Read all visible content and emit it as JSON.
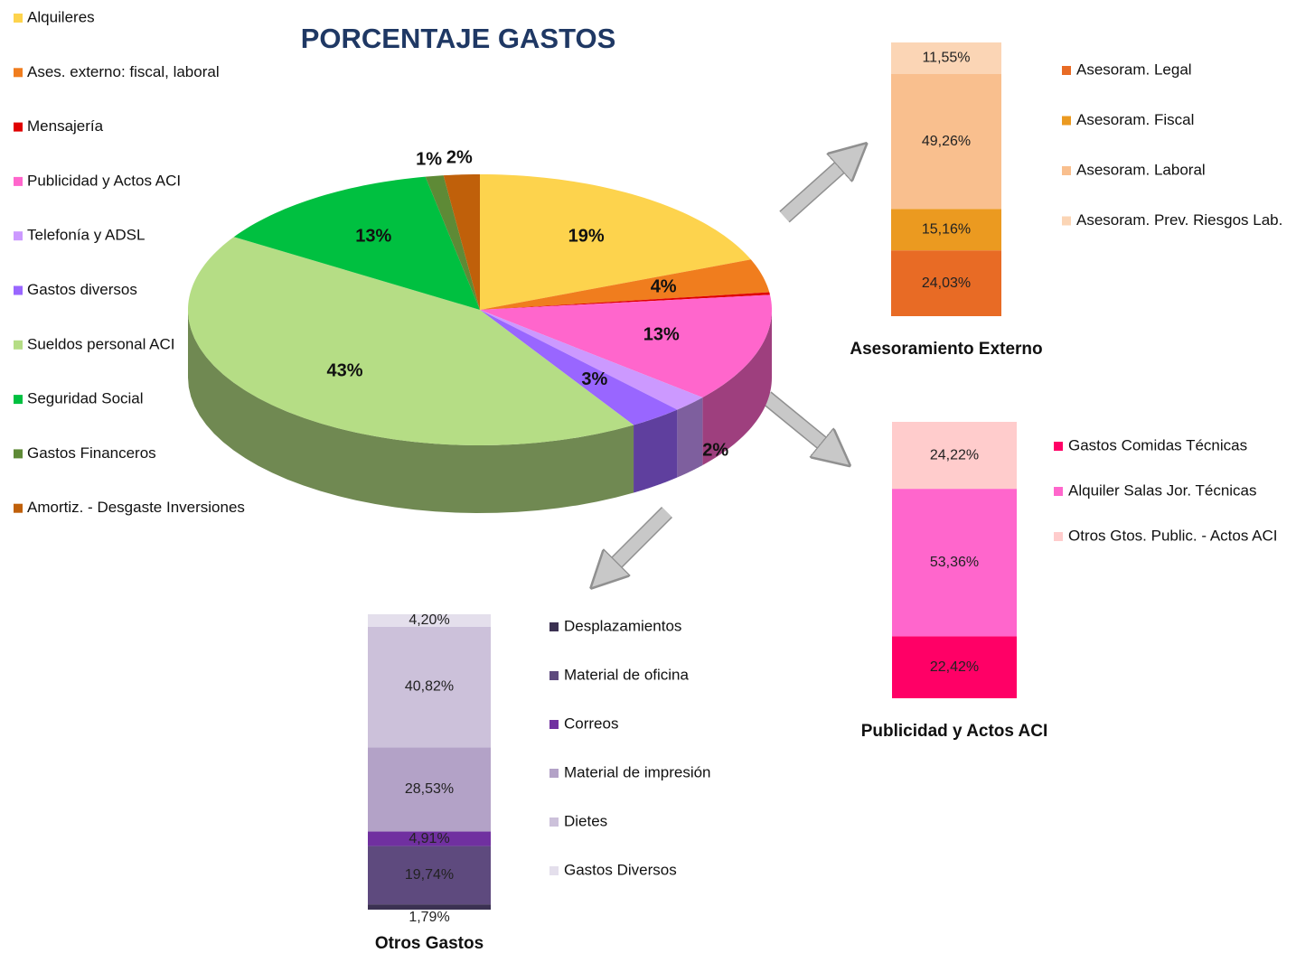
{
  "chart_data": [
    {
      "type": "pie",
      "title": "PORCENTAJE GASTOS",
      "categories": [
        "Alquileres",
        "Ases. externo: fiscal, laboral",
        "Mensajería",
        "Publicidad y Actos ACI",
        "Telefonía y ADSL",
        "Gastos diversos",
        "Sueldos personal ACI",
        "Seguridad Social",
        "Gastos Financeros",
        "Amortiz. - Desgaste  Inversiones"
      ],
      "values": [
        19,
        4,
        0.3,
        13,
        2,
        3,
        43,
        13,
        1,
        2
      ],
      "value_labels": [
        "19%",
        "4%",
        null,
        "13%",
        "2%",
        "3%",
        "43%",
        "13%",
        "1%",
        "2%"
      ],
      "colors": [
        "#fdd34d",
        "#f07d1e",
        "#e00000",
        "#ff66cc",
        "#cc99ff",
        "#9966ff",
        "#b5dd85",
        "#00c040",
        "#5e8a36",
        "#c0600a"
      ],
      "legend": "left"
    },
    {
      "type": "stacked_bar",
      "title": "Asesoramiento Externo",
      "ylim": [
        0,
        100
      ],
      "series": [
        {
          "name": "Asesoram. Legal",
          "color": "#e86b25",
          "values": [
            24.03
          ],
          "value_labels": [
            "24,03%"
          ]
        },
        {
          "name": "Asesoram. Fiscal",
          "color": "#eb9a20",
          "values": [
            15.16
          ],
          "value_labels": [
            "15,16%"
          ]
        },
        {
          "name": "Asesoram. Laboral",
          "color": "#f9bf8e",
          "values": [
            49.26
          ],
          "value_labels": [
            "49,26%"
          ]
        },
        {
          "name": "Asesoram. Prev. Riesgos Lab.",
          "color": "#fbd5b5",
          "values": [
            11.55
          ],
          "value_labels": [
            "11,55%"
          ]
        }
      ]
    },
    {
      "type": "stacked_bar",
      "title": "Publicidad y Actos ACI",
      "ylim": [
        0,
        100
      ],
      "series": [
        {
          "name": "Gastos Comidas Técnicas",
          "color": "#ff0066",
          "values": [
            22.42
          ],
          "value_labels": [
            "22,42%"
          ]
        },
        {
          "name": "Alquiler Salas Jor. Técnicas",
          "color": "#ff66cc",
          "values": [
            53.36
          ],
          "value_labels": [
            "53,36%"
          ]
        },
        {
          "name": "Otros Gtos.  Public. - Actos ACI",
          "color": "#ffcccc",
          "values": [
            24.22
          ],
          "value_labels": [
            "24,22%"
          ]
        }
      ]
    },
    {
      "type": "stacked_bar",
      "title": "Otros Gastos",
      "ylim": [
        0,
        100
      ],
      "series": [
        {
          "name": "Desplazamientos",
          "color": "#3b3152",
          "values": [
            1.79
          ],
          "value_labels": [
            "1,79%"
          ]
        },
        {
          "name": "Material de oficina",
          "color": "#5e4a7e",
          "values": [
            19.74
          ],
          "value_labels": [
            "19,74%"
          ]
        },
        {
          "name": "Correos",
          "color": "#7030a0",
          "values": [
            4.91
          ],
          "value_labels": [
            "4,91%"
          ]
        },
        {
          "name": "Material de impresión",
          "color": "#b3a2c7",
          "values": [
            28.53
          ],
          "value_labels": [
            "28,53%"
          ]
        },
        {
          "name": "Dietes",
          "color": "#ccc1da",
          "values": [
            40.82
          ],
          "value_labels": [
            "40,82%"
          ]
        },
        {
          "name": "Gastos Diversos",
          "color": "#e4dfec",
          "values": [
            4.2
          ],
          "value_labels": [
            "4,20%"
          ]
        }
      ]
    }
  ]
}
